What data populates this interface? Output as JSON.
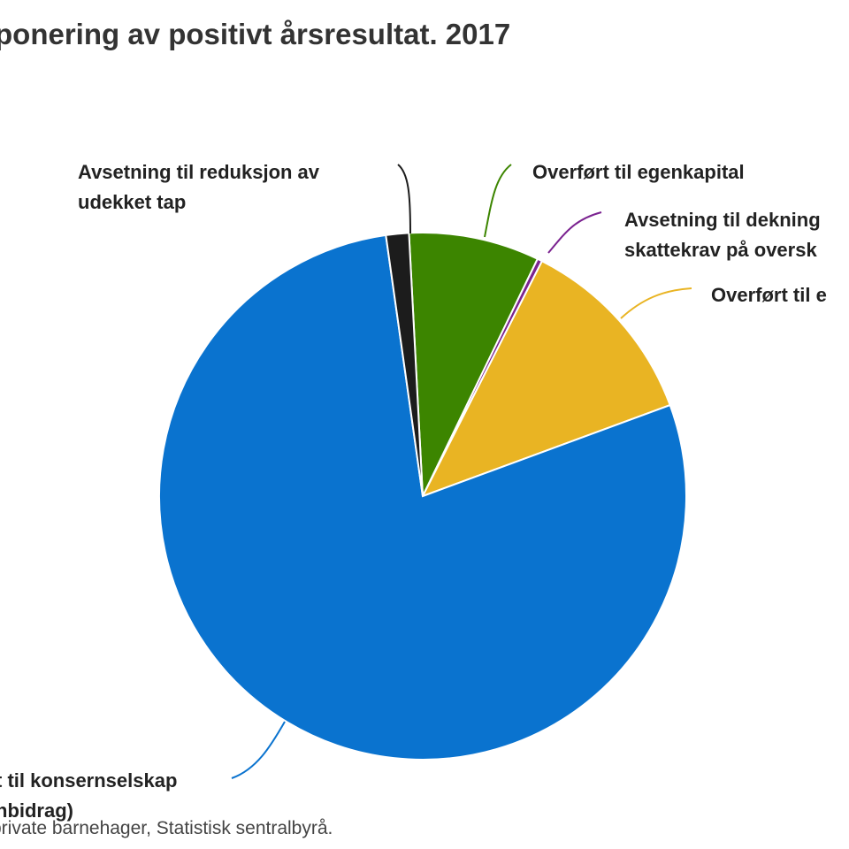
{
  "title": "ponering av positivt årsresultat. 2017",
  "source": "private barnehager, Statistisk sentralbyrå.",
  "chart_data": {
    "type": "pie",
    "title": "ponering av positivt årsresultat. 2017",
    "start_angle_deg": -3,
    "series": [
      {
        "name": "Overført til egenkapital",
        "lines": [
          "Overført til egenkapital"
        ],
        "value": 8.0,
        "color": "#3c8500"
      },
      {
        "name": "Avsetning til dekning skattekrav på oversk",
        "lines": [
          "Avsetning til dekning",
          "skattekrav på oversk"
        ],
        "value": 0.3,
        "color": "#7b2390"
      },
      {
        "name": "Overført til e",
        "lines": [
          "Overført til e"
        ],
        "value": 11.9,
        "color": "#e9b423"
      },
      {
        "name": "t til konsernselskap nbidrag)",
        "lines": [
          "t til konsernselskap",
          "nbidrag)"
        ],
        "value": 78.3,
        "color": "#0a73cf"
      },
      {
        "name": "Avsetning til reduksjon av udekket tap",
        "lines": [
          "Avsetning til reduksjon av",
          "udekket tap"
        ],
        "value": 1.4,
        "color": "#1c1c1c"
      }
    ]
  }
}
